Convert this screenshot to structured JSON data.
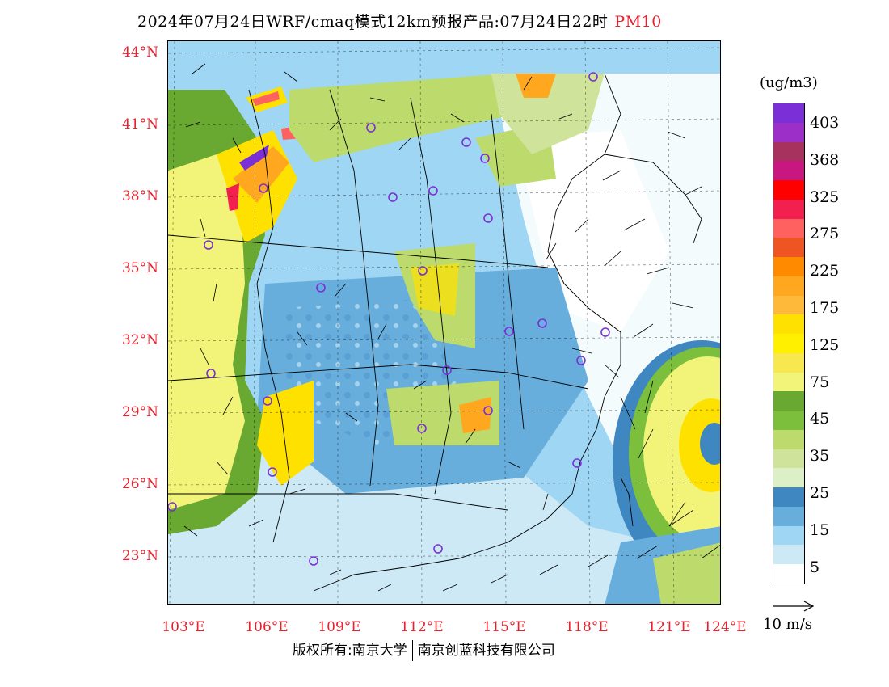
{
  "title": "2024年07月24日WRF/cmaq模式12km预报产品:07月24日22时",
  "pollutant": "PM10",
  "unit": "(ug/m3)",
  "lat_labels": [
    "44°N",
    "41°N",
    "38°N",
    "35°N",
    "32°N",
    "29°N",
    "26°N",
    "23°N"
  ],
  "lon_labels": [
    "103°E",
    "106°E",
    "109°E",
    "112°E",
    "115°E",
    "118°E",
    "121°E",
    "124°E"
  ],
  "colorbar": {
    "labels": [
      "403",
      "368",
      "325",
      "275",
      "225",
      "175",
      "125",
      "75",
      "45",
      "35",
      "25",
      "15",
      "5"
    ],
    "colors": [
      "#7b2fd6",
      "#9b2fc8",
      "#a8325e",
      "#c8177f",
      "#ff0000",
      "#f2204f",
      "#ff6060",
      "#ee5522",
      "#ff8a00",
      "#ffa71f",
      "#ffb93a",
      "#ffe100",
      "#fff000",
      "#f6e84e",
      "#f2f47a",
      "#6aa931",
      "#7bbf3d",
      "#bcdb6c",
      "#cfe39a",
      "#dcefc6",
      "#3f87c1",
      "#68aedd",
      "#9fd6f3",
      "#cde9f6",
      "#ffffff"
    ]
  },
  "wind_scale_label": "10 m/s",
  "footer": {
    "left": "版权所有:南京大学",
    "right": "南京创蓝科技有限公司"
  }
}
